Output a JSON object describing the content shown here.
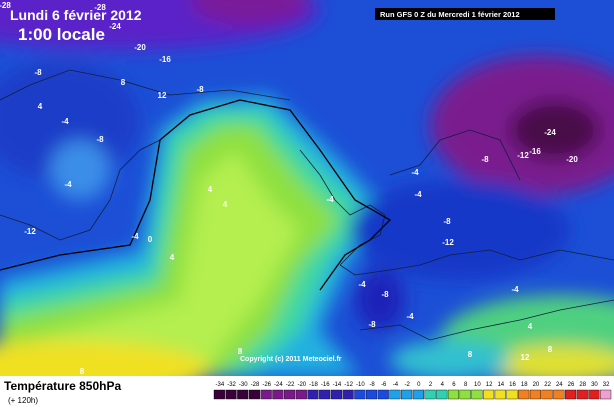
{
  "header": {
    "date": "Lundi 6 février 2012",
    "time": "1:00 locale",
    "run": "Run GFS 0 Z du Mercredi 1 février 2012"
  },
  "map": {
    "copyright": "Copyright (c) 2011 Meteociel.fr",
    "labels": [
      -28,
      -24,
      -20,
      -16,
      -8,
      8,
      12,
      -8,
      4,
      -4,
      -8,
      -4,
      -12,
      -4,
      0,
      4,
      4,
      4,
      -4,
      -4,
      -8,
      -12,
      -16,
      -24,
      -20,
      -8,
      -12,
      -4,
      -4,
      -8,
      -4,
      -8,
      -4,
      4,
      8,
      12,
      8,
      8,
      8,
      -28
    ]
  },
  "legend": {
    "title": "Température 850hPa",
    "subtitle": "(+ 120h)",
    "ticks": [
      -34,
      -32,
      -30,
      -28,
      -26,
      -24,
      -22,
      -20,
      -18,
      -16,
      -14,
      -12,
      -10,
      -8,
      -6,
      -4,
      -2,
      0,
      2,
      4,
      6,
      8,
      10,
      12,
      14,
      16,
      18,
      20,
      22,
      24,
      26,
      28,
      30,
      32
    ]
  }
}
